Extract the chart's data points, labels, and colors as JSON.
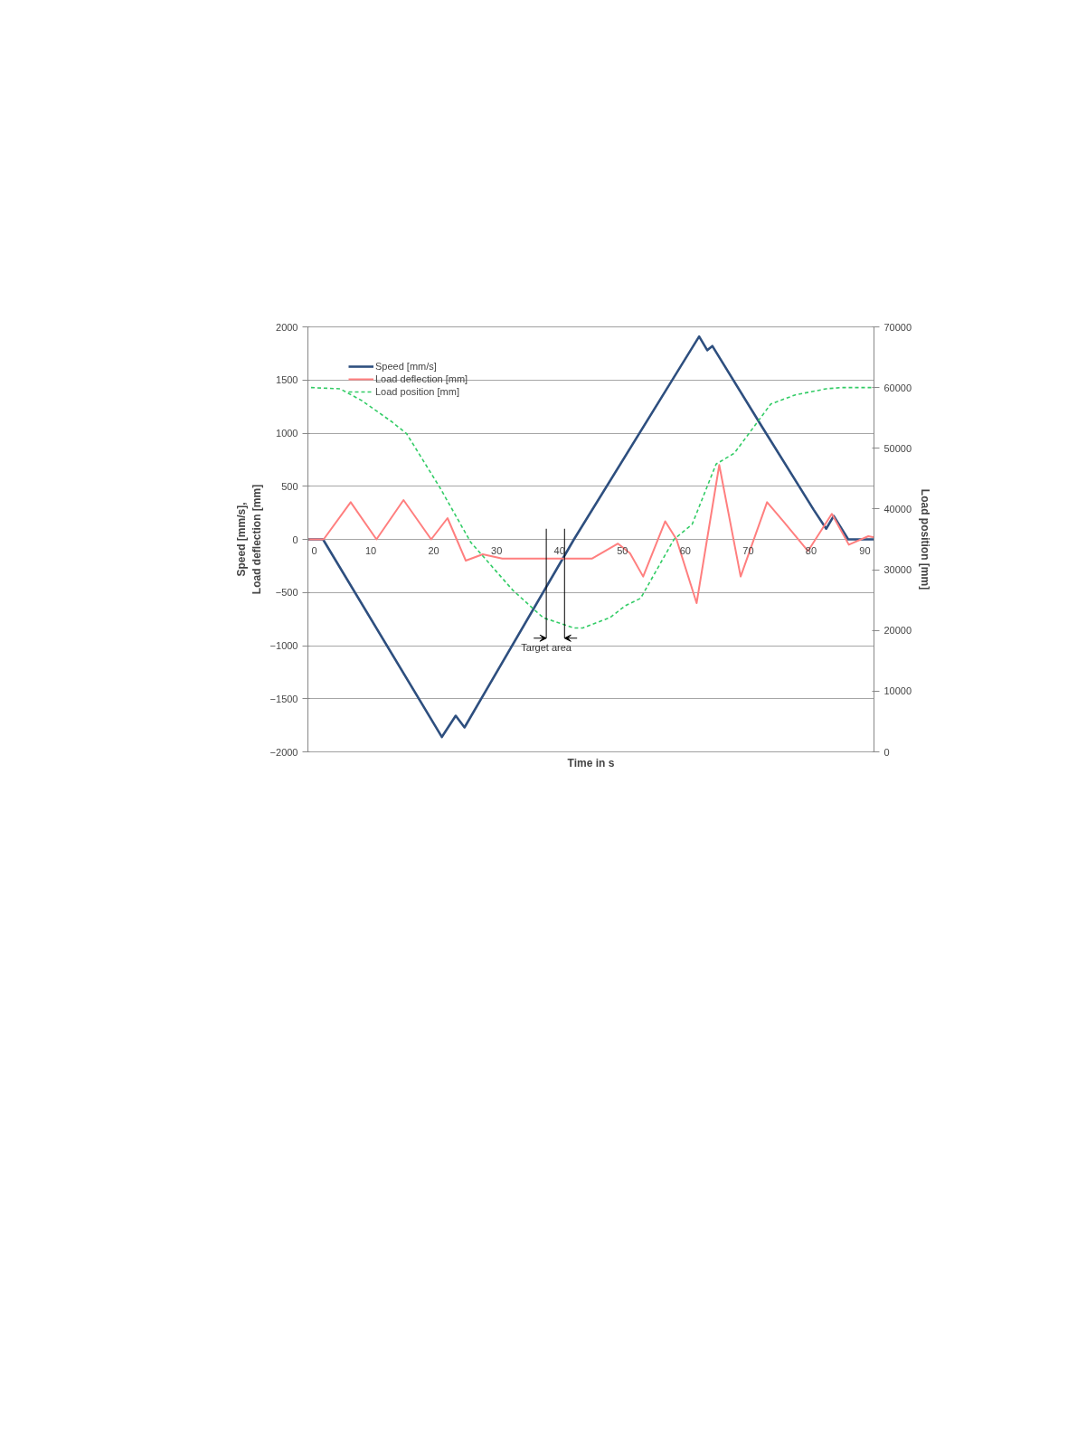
{
  "chart_data": {
    "type": "line",
    "xlabel": "Time in s",
    "ylabel": "Speed [mm/s],\nLoad deflection [mm]",
    "y2label": "Load position [mm]",
    "xlim": [
      0,
      90
    ],
    "xticks": [
      0,
      10,
      20,
      30,
      40,
      50,
      60,
      70,
      80,
      90
    ],
    "ylim": [
      -2000,
      2000
    ],
    "yticks": [
      -2000,
      -1500,
      -1000,
      -500,
      0,
      500,
      1000,
      1500,
      2000
    ],
    "y2lim": [
      0,
      70000
    ],
    "y2ticks": [
      0,
      10000,
      20000,
      30000,
      40000,
      50000,
      60000,
      70000
    ],
    "grid": "y",
    "legend": "top left",
    "ref_lines": [
      {
        "axis": "x",
        "value": 37.9,
        "label": "Target area",
        "color": "#000000"
      },
      {
        "axis": "x",
        "value": 40.8,
        "color": "#000000"
      }
    ],
    "series": [
      {
        "name": "Speed [mm/s]",
        "color": "#2e4f7f",
        "line_style": "solid",
        "x": [
          0,
          2.4,
          21.3,
          23.5,
          24.9,
          42.3,
          62.2,
          63.5,
          64.3,
          72.2,
          80.4,
          82.4,
          83.6,
          85.9,
          90
        ],
        "values": [
          0,
          0,
          -1860,
          -1660,
          -1770,
          0,
          1910,
          1780,
          1820,
          1060,
          280,
          100,
          220,
          0,
          0
        ]
      },
      {
        "name": "Load deflection [mm]",
        "color": "#ff7f7f",
        "line_style": "solid",
        "x": [
          0,
          2.5,
          6.8,
          10.9,
          15.2,
          19.6,
          22.2,
          25.1,
          27.8,
          30.9,
          45.2,
          49.3,
          51.2,
          53.3,
          56.8,
          58.6,
          61.8,
          65.4,
          68.8,
          73.0,
          75.6,
          79.5,
          83.3,
          86.0,
          89.1,
          90
        ],
        "values": [
          0,
          0,
          350,
          0,
          370,
          0,
          200,
          -200,
          -140,
          -180,
          -180,
          -40,
          -130,
          -350,
          170,
          0,
          -600,
          700,
          -350,
          350,
          170,
          -110,
          240,
          -50,
          30,
          20
        ]
      },
      {
        "name": "Load position [mm]",
        "color": "#33cc66",
        "line_style": "dashed",
        "axis": "y2",
        "x": [
          0.5,
          5.1,
          8.5,
          13.3,
          15.7,
          21.0,
          25.9,
          32.6,
          37.4,
          42.3,
          43.7,
          48.0,
          50.5,
          52.9,
          58.2,
          61.1,
          64.9,
          67.8,
          73.6,
          77.5,
          82.4,
          84.8,
          90
        ],
        "values": [
          60000,
          59800,
          57900,
          54400,
          52400,
          43500,
          34500,
          26600,
          22100,
          20400,
          20400,
          22100,
          24100,
          25300,
          35000,
          37500,
          47400,
          49200,
          57300,
          58800,
          59800,
          60000,
          60000
        ]
      }
    ]
  }
}
